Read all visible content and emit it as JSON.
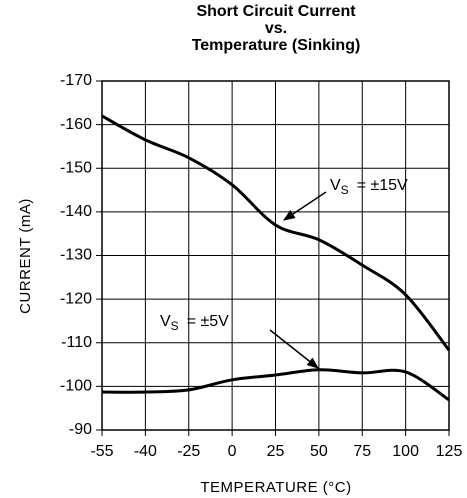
{
  "chart_data": {
    "type": "line",
    "title": [
      "Short Circuit Current",
      "vs.",
      "Temperature (Sinking)"
    ],
    "xlabel": "TEMPERATURE (°C)",
    "ylabel": "CURRENT (mA)",
    "categories": [
      "-55",
      "-40",
      "-25",
      "0",
      "25",
      "50",
      "75",
      "100",
      "125"
    ],
    "series": [
      {
        "name": "±15V",
        "color": "#000000",
        "values": [
          -162,
          -156.5,
          -152.4,
          -146.2,
          -137,
          -133.6,
          -127.8,
          -121,
          -108.3
        ]
      },
      {
        "name": "±5V",
        "color": "#000000",
        "values": [
          -98.7,
          -98.7,
          -99.2,
          -101.5,
          -102.6,
          -103.8,
          -103.1,
          -103.3,
          -96.9
        ]
      }
    ],
    "annotations": [
      {
        "text": "V",
        "sub": "S",
        "rest": "= ±15V"
      },
      {
        "text": "V",
        "sub": "S",
        "rest": "= ±5V"
      }
    ],
    "ylim": [
      -90,
      -170
    ],
    "yticks": [
      -170,
      -160,
      -150,
      -140,
      -130,
      -120,
      -110,
      -100,
      -90
    ],
    "grid": true
  }
}
